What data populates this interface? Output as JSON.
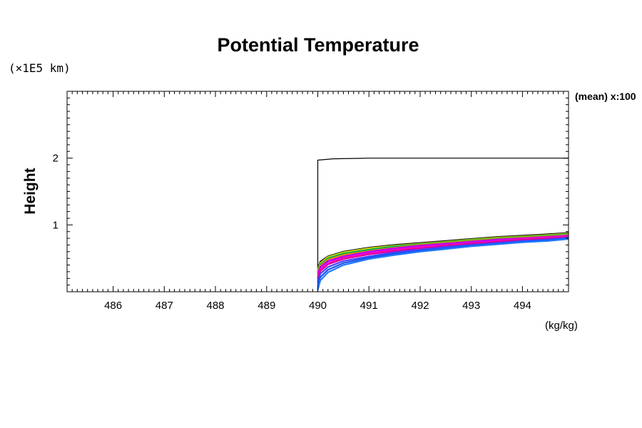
{
  "chart_data": {
    "type": "line",
    "title": "Potential Temperature",
    "scale_note": "(×1E5 km)",
    "ylabel": "Height",
    "xunit": "(kg/kg)",
    "annotation": "(mean) x:100",
    "xlim": [
      485.1,
      494.9
    ],
    "ylim": [
      0,
      3
    ],
    "xticks": [
      "486",
      "487",
      "488",
      "489",
      "490",
      "491",
      "492",
      "493",
      "494"
    ],
    "yticks": [
      "1",
      "2"
    ],
    "grid": false,
    "series": [
      {
        "color": "#000000",
        "x": [
          490.0,
          490.0,
          490.3,
          491.0,
          492.0,
          493.0,
          494.0,
          494.9
        ],
        "y": [
          0.0,
          1.97,
          1.99,
          2.0,
          2.0,
          2.0,
          2.0,
          2.0
        ]
      },
      {
        "color": "#000000",
        "x": [
          490.0,
          490.05,
          490.2,
          490.5,
          491.0,
          491.5,
          492.0,
          492.5,
          493.0,
          493.5,
          494.0,
          494.5,
          494.9
        ],
        "y": [
          0.35,
          0.45,
          0.53,
          0.6,
          0.66,
          0.7,
          0.73,
          0.76,
          0.79,
          0.82,
          0.84,
          0.86,
          0.88
        ]
      },
      {
        "color": "#ccdd00",
        "x": [
          490.0,
          490.05,
          490.2,
          490.5,
          491.0,
          491.5,
          492.0,
          492.5,
          493.0,
          493.5,
          494.0,
          494.5,
          494.9
        ],
        "y": [
          0.33,
          0.43,
          0.52,
          0.59,
          0.65,
          0.69,
          0.72,
          0.75,
          0.78,
          0.81,
          0.83,
          0.85,
          0.87
        ]
      },
      {
        "color": "#00aa55",
        "x": [
          490.0,
          490.05,
          490.2,
          490.5,
          491.0,
          491.5,
          492.0,
          492.5,
          493.0,
          493.5,
          494.0,
          494.5,
          494.9
        ],
        "y": [
          0.31,
          0.41,
          0.5,
          0.57,
          0.63,
          0.68,
          0.71,
          0.74,
          0.77,
          0.8,
          0.82,
          0.84,
          0.86
        ]
      },
      {
        "color": "#ff8800",
        "x": [
          490.0,
          490.05,
          490.2,
          490.5,
          491.0,
          491.5,
          492.0,
          492.5,
          493.0,
          493.5,
          494.0,
          494.5,
          494.9
        ],
        "y": [
          0.29,
          0.39,
          0.48,
          0.55,
          0.61,
          0.66,
          0.7,
          0.73,
          0.76,
          0.79,
          0.81,
          0.83,
          0.85
        ]
      },
      {
        "color": "#aa00ff",
        "x": [
          490.0,
          490.05,
          490.2,
          490.5,
          491.0,
          491.5,
          492.0,
          492.5,
          493.0,
          493.5,
          494.0,
          494.5,
          494.9
        ],
        "y": [
          0.27,
          0.37,
          0.46,
          0.53,
          0.6,
          0.65,
          0.69,
          0.72,
          0.75,
          0.78,
          0.8,
          0.82,
          0.84
        ]
      },
      {
        "color": "#ff00cc",
        "x": [
          490.0,
          490.05,
          490.2,
          490.5,
          491.0,
          491.5,
          492.0,
          492.5,
          493.0,
          493.5,
          494.0,
          494.5,
          494.9
        ],
        "y": [
          0.24,
          0.34,
          0.43,
          0.51,
          0.58,
          0.63,
          0.67,
          0.7,
          0.73,
          0.76,
          0.79,
          0.81,
          0.83
        ]
      },
      {
        "color": "#dd0099",
        "x": [
          490.0,
          490.05,
          490.2,
          490.5,
          491.0,
          491.5,
          492.0,
          492.5,
          493.0,
          493.5,
          494.0,
          494.5,
          494.9
        ],
        "y": [
          0.21,
          0.31,
          0.41,
          0.49,
          0.56,
          0.61,
          0.65,
          0.69,
          0.72,
          0.75,
          0.78,
          0.8,
          0.82
        ]
      },
      {
        "color": "#4444ff",
        "x": [
          490.0,
          490.05,
          490.2,
          490.5,
          491.0,
          491.5,
          492.0,
          492.5,
          493.0,
          493.5,
          494.0,
          494.5,
          494.9
        ],
        "y": [
          0.16,
          0.27,
          0.37,
          0.46,
          0.53,
          0.59,
          0.63,
          0.67,
          0.7,
          0.73,
          0.76,
          0.78,
          0.81
        ]
      },
      {
        "color": "#1155ee",
        "x": [
          490.0,
          490.05,
          490.2,
          490.5,
          491.0,
          491.5,
          492.0,
          492.5,
          493.0,
          493.5,
          494.0,
          494.5,
          494.9
        ],
        "y": [
          0.1,
          0.22,
          0.33,
          0.43,
          0.51,
          0.57,
          0.61,
          0.65,
          0.69,
          0.72,
          0.75,
          0.77,
          0.8
        ]
      },
      {
        "color": "#2277ff",
        "x": [
          490.0,
          490.05,
          490.2,
          490.5,
          491.0,
          491.5,
          492.0,
          492.5,
          493.0,
          493.5,
          494.0,
          494.5,
          494.9
        ],
        "y": [
          0.03,
          0.17,
          0.29,
          0.4,
          0.49,
          0.55,
          0.6,
          0.64,
          0.68,
          0.71,
          0.74,
          0.76,
          0.79
        ]
      }
    ]
  }
}
